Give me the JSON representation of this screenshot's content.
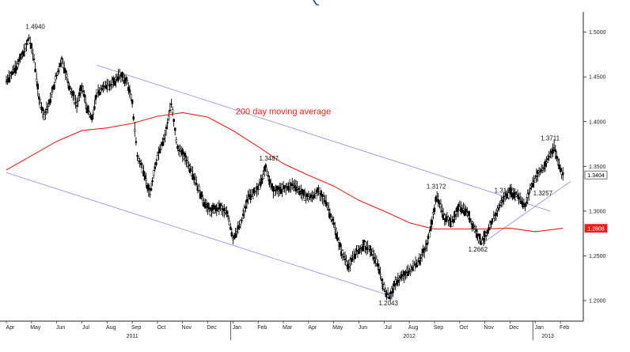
{
  "chart_data": {
    "type": "candlestick-line",
    "y_ticks": [
      "1.2000",
      "1.2500",
      "1.3000",
      "1.3500",
      "1.4000",
      "1.4500",
      "1.5000"
    ],
    "y_tick_values": [
      1.2,
      1.25,
      1.3,
      1.35,
      1.4,
      1.45,
      1.5
    ],
    "ylim": [
      1.185,
      1.52
    ],
    "x_months": [
      "Apr",
      "May",
      "Jun",
      "Jul",
      "Aug",
      "Sep",
      "Oct",
      "Nov",
      "Dec",
      "Jan",
      "Feb",
      "Mar",
      "Apr",
      "May",
      "Jun",
      "Jul",
      "Aug",
      "Sep",
      "Oct",
      "Nov",
      "Dec",
      "Jan",
      "Feb"
    ],
    "x_years": [
      {
        "label": "2011",
        "month_index": 5
      },
      {
        "label": "2012",
        "month_index": 16
      },
      {
        "label": "2013",
        "month_index": 21.5
      }
    ],
    "xlim": [
      0,
      22.5
    ],
    "series": [
      {
        "type": "price",
        "color": "#000000",
        "points": [
          [
            0,
            1.445
          ],
          [
            0.4,
            1.462
          ],
          [
            0.7,
            1.478
          ],
          [
            0.9,
            1.494
          ],
          [
            1.1,
            1.47
          ],
          [
            1.3,
            1.425
          ],
          [
            1.5,
            1.408
          ],
          [
            1.7,
            1.42
          ],
          [
            2.0,
            1.452
          ],
          [
            2.2,
            1.47
          ],
          [
            2.5,
            1.44
          ],
          [
            2.8,
            1.418
          ],
          [
            3.0,
            1.44
          ],
          [
            3.2,
            1.415
          ],
          [
            3.4,
            1.402
          ],
          [
            3.6,
            1.432
          ],
          [
            3.9,
            1.44
          ],
          [
            4.2,
            1.442
          ],
          [
            4.5,
            1.452
          ],
          [
            4.8,
            1.445
          ],
          [
            5.0,
            1.42
          ],
          [
            5.2,
            1.362
          ],
          [
            5.45,
            1.345
          ],
          [
            5.7,
            1.318
          ],
          [
            6.0,
            1.362
          ],
          [
            6.3,
            1.385
          ],
          [
            6.55,
            1.42
          ],
          [
            6.8,
            1.37
          ],
          [
            7.1,
            1.36
          ],
          [
            7.5,
            1.335
          ],
          [
            7.8,
            1.312
          ],
          [
            8.1,
            1.3
          ],
          [
            8.5,
            1.305
          ],
          [
            8.8,
            1.295
          ],
          [
            9.0,
            1.27
          ],
          [
            9.3,
            1.285
          ],
          [
            9.6,
            1.315
          ],
          [
            10.0,
            1.325
          ],
          [
            10.3,
            1.3487
          ],
          [
            10.6,
            1.322
          ],
          [
            11.0,
            1.325
          ],
          [
            11.4,
            1.33
          ],
          [
            11.8,
            1.318
          ],
          [
            12.1,
            1.315
          ],
          [
            12.4,
            1.322
          ],
          [
            12.7,
            1.31
          ],
          [
            13.0,
            1.285
          ],
          [
            13.3,
            1.255
          ],
          [
            13.6,
            1.238
          ],
          [
            13.9,
            1.255
          ],
          [
            14.2,
            1.262
          ],
          [
            14.5,
            1.255
          ],
          [
            14.8,
            1.235
          ],
          [
            15.0,
            1.213
          ],
          [
            15.2,
            1.2043
          ],
          [
            15.5,
            1.222
          ],
          [
            15.8,
            1.228
          ],
          [
            16.1,
            1.236
          ],
          [
            16.4,
            1.245
          ],
          [
            16.7,
            1.262
          ],
          [
            16.9,
            1.29
          ],
          [
            17.1,
            1.3172
          ],
          [
            17.4,
            1.292
          ],
          [
            17.7,
            1.288
          ],
          [
            18.0,
            1.305
          ],
          [
            18.3,
            1.298
          ],
          [
            18.6,
            1.28
          ],
          [
            18.85,
            1.2662
          ],
          [
            19.1,
            1.275
          ],
          [
            19.4,
            1.295
          ],
          [
            19.7,
            1.3127
          ],
          [
            20.0,
            1.322
          ],
          [
            20.3,
            1.318
          ],
          [
            20.6,
            1.305
          ],
          [
            20.8,
            1.3257
          ],
          [
            21.1,
            1.342
          ],
          [
            21.4,
            1.35
          ],
          [
            21.6,
            1.365
          ],
          [
            21.75,
            1.3711
          ],
          [
            21.95,
            1.352
          ],
          [
            22.1,
            1.3404
          ]
        ]
      },
      {
        "name": "200 day moving average",
        "type": "line",
        "color": "#e8201c",
        "points": [
          [
            0,
            1.346
          ],
          [
            1,
            1.362
          ],
          [
            2,
            1.378
          ],
          [
            3,
            1.39
          ],
          [
            4,
            1.393
          ],
          [
            5,
            1.398
          ],
          [
            6,
            1.406
          ],
          [
            7,
            1.41
          ],
          [
            8,
            1.405
          ],
          [
            9,
            1.39
          ],
          [
            10,
            1.372
          ],
          [
            11,
            1.353
          ],
          [
            12,
            1.34
          ],
          [
            13,
            1.328
          ],
          [
            14,
            1.312
          ],
          [
            15,
            1.3
          ],
          [
            16,
            1.287
          ],
          [
            16.7,
            1.282
          ],
          [
            17,
            1.28
          ],
          [
            18,
            1.28
          ],
          [
            19,
            1.28
          ],
          [
            20,
            1.281
          ],
          [
            21,
            1.277
          ],
          [
            22.1,
            1.2808
          ]
        ]
      }
    ],
    "channel_lines": [
      {
        "from": [
          3.6,
          1.463
        ],
        "to": [
          21.6,
          1.3
        ]
      },
      {
        "from": [
          0,
          1.343
        ],
        "to": [
          15.4,
          1.204
        ]
      },
      {
        "from": [
          18.85,
          1.263
        ],
        "to": [
          22.4,
          1.333
        ]
      }
    ],
    "annotations": [
      {
        "text": "1.4940",
        "x": 0.9,
        "y": 1.494
      },
      {
        "text": "200 day moving average",
        "x": 11.0,
        "y": 1.408,
        "color": "#e8201c"
      },
      {
        "text": "1.3487",
        "x": 10.3,
        "y": 1.3487
      },
      {
        "text": "1.3172",
        "x": 17.1,
        "y": 1.3172
      },
      {
        "text": "1.3127",
        "x": 19.7,
        "y": 1.3127
      },
      {
        "text": "1.3711",
        "x": 21.75,
        "y": 1.3711
      },
      {
        "text": "1.3257",
        "x": 20.8,
        "y": 1.3257
      },
      {
        "text": "1.2662",
        "x": 18.85,
        "y": 1.2662
      },
      {
        "text": "1.2043",
        "x": 15.2,
        "y": 1.2043
      }
    ],
    "last_value_labels": [
      {
        "text": "1.3404",
        "y": 1.3404,
        "bg": "#ffffff",
        "fg": "#000000",
        "border": "#555555"
      },
      {
        "text": "1.2808",
        "y": 1.2808,
        "bg": "#e8201c",
        "fg": "#ffffff",
        "border": "#e8201c"
      }
    ],
    "channel_color": "#8a8ae0",
    "grid": false
  }
}
